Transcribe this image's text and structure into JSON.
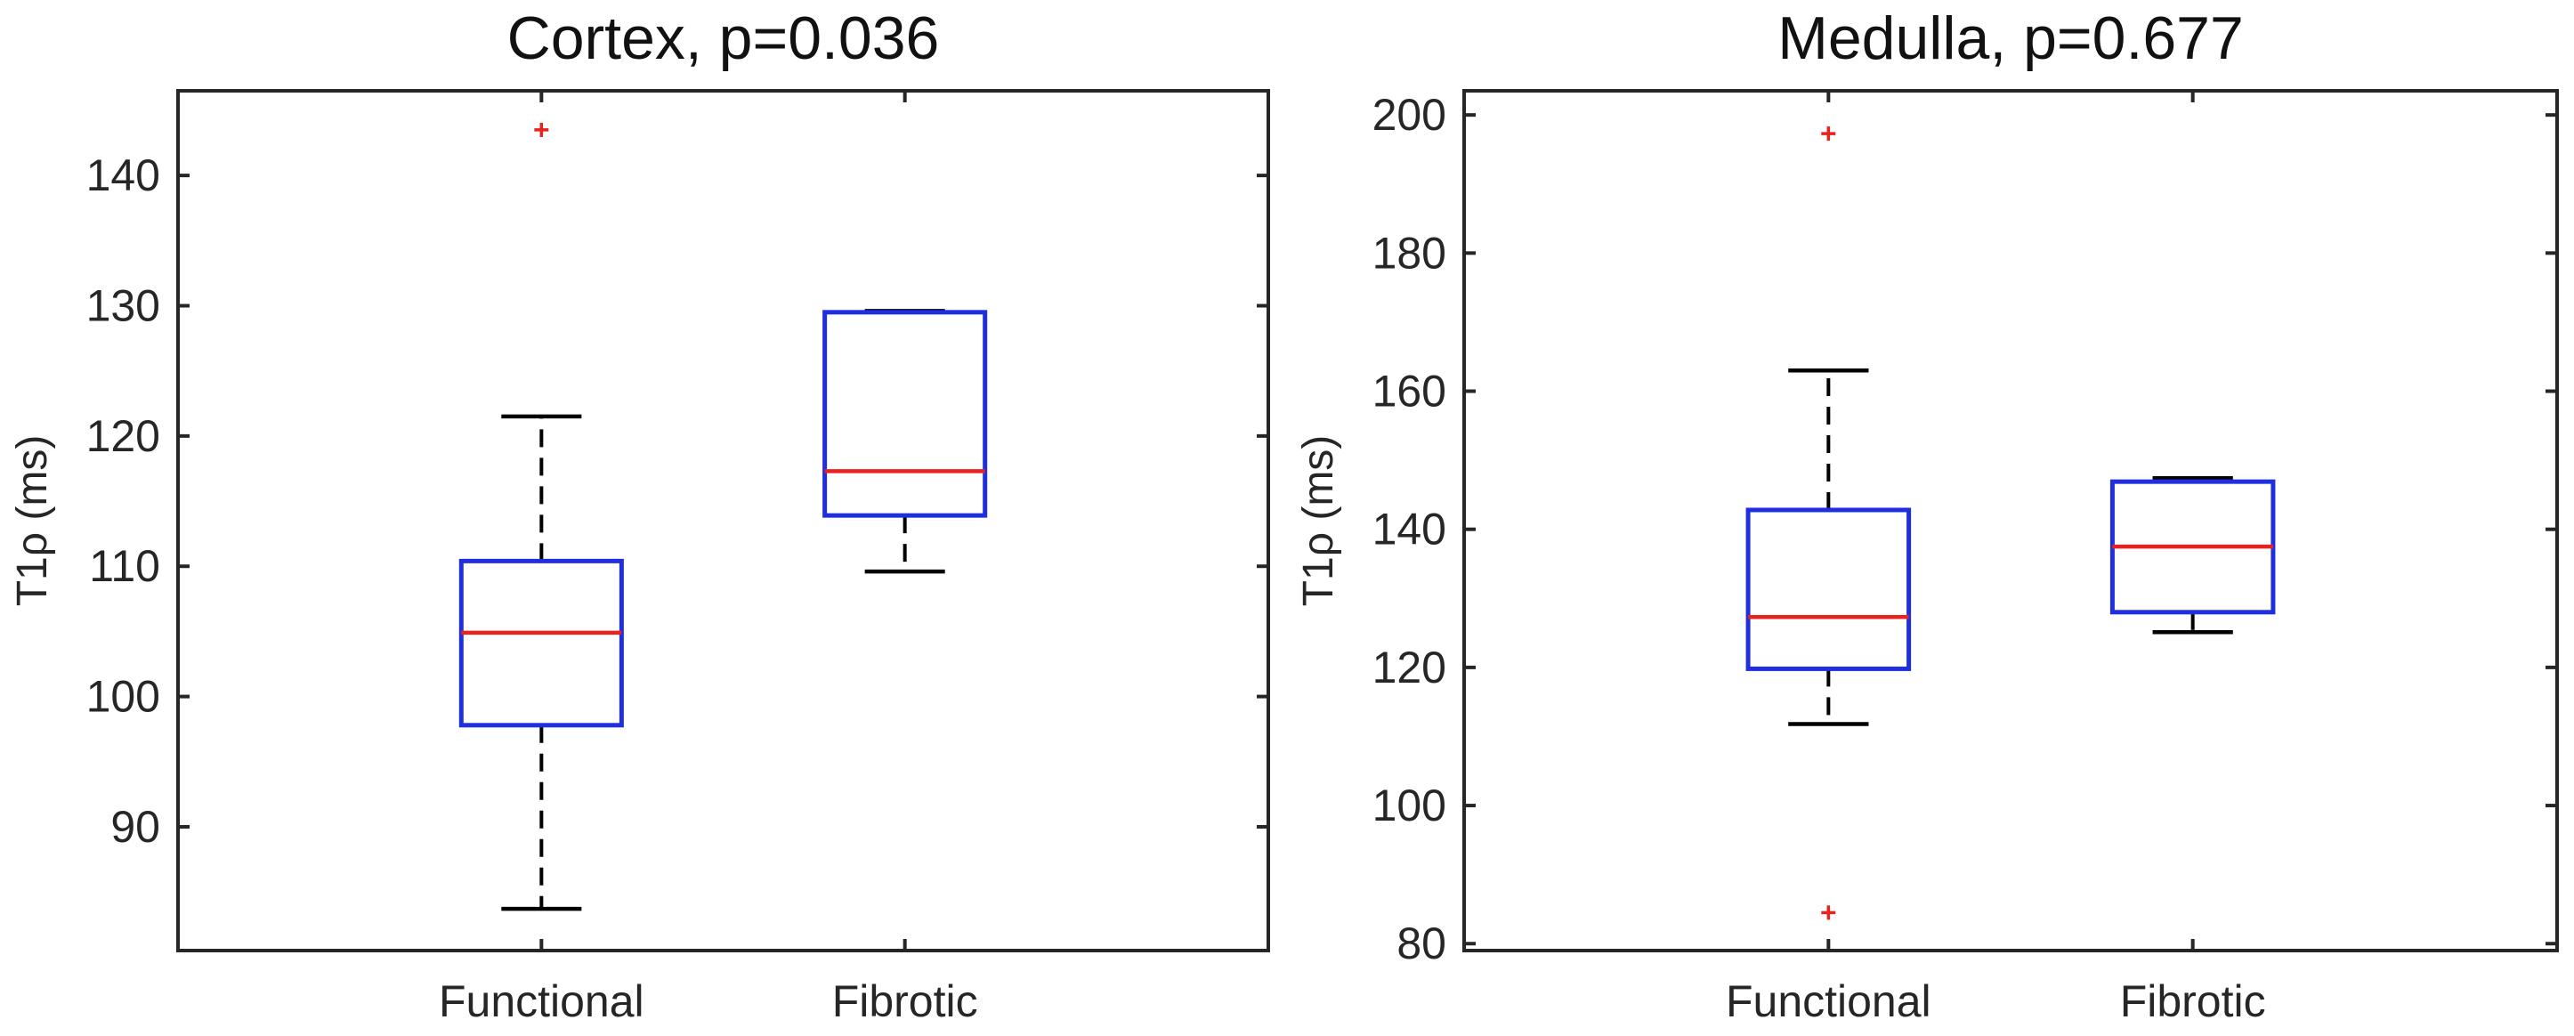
{
  "chart_data": [
    {
      "type": "boxplot",
      "title": "Cortex, p=0.036",
      "xlabel": "",
      "ylabel": "T1ρ (ms)",
      "ylim": [
        80.5,
        146.5
      ],
      "yticks": [
        90,
        100,
        110,
        120,
        130,
        140
      ],
      "categories": [
        "Functional",
        "Fibrotic"
      ],
      "box_color": "#1f2fe0",
      "median_color": "#e8231f",
      "outlier_color": "#e8231f",
      "whisker_color": "#000000",
      "boxes": [
        {
          "category": "Functional",
          "whisker_low": 83.7,
          "q1": 97.8,
          "median": 104.9,
          "q3": 110.4,
          "whisker_high": 121.5,
          "outliers": [
            143.5
          ]
        },
        {
          "category": "Fibrotic",
          "whisker_low": 109.6,
          "q1": 113.9,
          "median": 117.3,
          "q3": 129.5,
          "whisker_high": 129.6,
          "outliers": []
        }
      ]
    },
    {
      "type": "boxplot",
      "title": "Medulla, p=0.677",
      "xlabel": "",
      "ylabel": "T1ρ (ms)",
      "ylim": [
        79,
        203.5
      ],
      "yticks": [
        80,
        100,
        120,
        140,
        160,
        180,
        200
      ],
      "categories": [
        "Functional",
        "Fibrotic"
      ],
      "box_color": "#1f2fe0",
      "median_color": "#e8231f",
      "outlier_color": "#e8231f",
      "whisker_color": "#000000",
      "boxes": [
        {
          "category": "Functional",
          "whisker_low": 111.8,
          "q1": 119.8,
          "median": 127.3,
          "q3": 142.8,
          "whisker_high": 163.0,
          "outliers": [
            197.3,
            84.5
          ]
        },
        {
          "category": "Fibrotic",
          "whisker_low": 125.1,
          "q1": 128.0,
          "median": 137.5,
          "q3": 146.9,
          "whisker_high": 147.4,
          "outliers": []
        }
      ]
    }
  ]
}
